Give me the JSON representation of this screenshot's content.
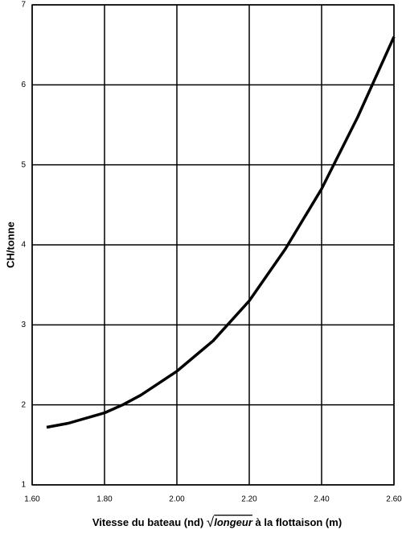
{
  "chart_data": {
    "type": "line",
    "ylabel": "CH/tonne",
    "xlabel": [
      "Vitesse du bateau (nd) ",
      "√",
      "longeur",
      " à la flottaison (m)"
    ],
    "xlim": [
      1.6,
      2.6
    ],
    "ylim": [
      1,
      7
    ],
    "xticks": [
      {
        "value": 1.6,
        "label": "1.60"
      },
      {
        "value": 1.8,
        "label": "1.80"
      },
      {
        "value": 2.0,
        "label": "2.00"
      },
      {
        "value": 2.2,
        "label": "2.20"
      },
      {
        "value": 2.4,
        "label": "2.40"
      },
      {
        "value": 2.6,
        "label": "2.60"
      }
    ],
    "yticks": [
      1,
      2,
      3,
      4,
      5,
      6,
      7
    ],
    "grid": true,
    "color": "#000000",
    "x": [
      1.64,
      1.7,
      1.8,
      1.85,
      1.9,
      2.0,
      2.1,
      2.2,
      2.3,
      2.4,
      2.5,
      2.6
    ],
    "values": [
      1.72,
      1.77,
      1.9,
      2.0,
      2.12,
      2.42,
      2.8,
      3.3,
      3.95,
      4.7,
      5.6,
      6.6
    ]
  }
}
